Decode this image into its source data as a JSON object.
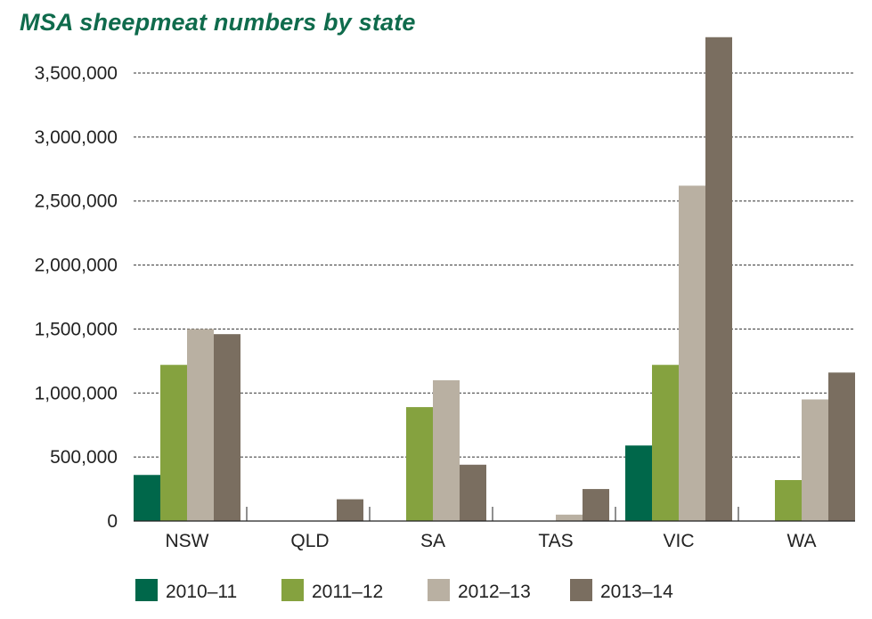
{
  "title": "MSA sheepmeat numbers by state",
  "chart_data": {
    "type": "bar",
    "title": "MSA sheepmeat numbers by state",
    "xlabel": "",
    "ylabel": "",
    "ylim": [
      0,
      3800000
    ],
    "yticks": [
      0,
      500000,
      1000000,
      1500000,
      2000000,
      2500000,
      3000000,
      3500000
    ],
    "ytick_labels": [
      "0",
      "500,000",
      "1,000,000",
      "1,500,000",
      "2,000,000",
      "2,500,000",
      "3,000,000",
      "3,500,000"
    ],
    "categories": [
      "NSW",
      "QLD",
      "SA",
      "TAS",
      "VIC",
      "WA"
    ],
    "grid": "horizontal dashed",
    "legend_position": "bottom",
    "series": [
      {
        "name": "2010–11",
        "color": "#00674a",
        "values": [
          360000,
          0,
          0,
          0,
          590000,
          0
        ]
      },
      {
        "name": "2011–12",
        "color": "#85a23f",
        "values": [
          1220000,
          0,
          890000,
          0,
          1220000,
          320000
        ]
      },
      {
        "name": "2012–13",
        "color": "#b9b0a2",
        "values": [
          1500000,
          0,
          1100000,
          50000,
          2620000,
          950000
        ]
      },
      {
        "name": "2013–14",
        "color": "#7a6e60",
        "values": [
          1460000,
          170000,
          440000,
          250000,
          3780000,
          1160000
        ]
      }
    ]
  }
}
